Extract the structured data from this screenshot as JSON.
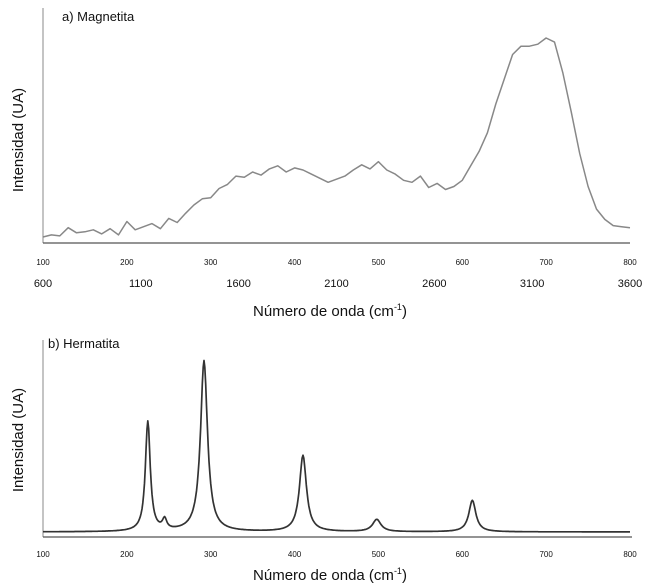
{
  "chart_data": [
    {
      "type": "line",
      "title": "a) Magnetita",
      "xlabel": "Número de onda (cm",
      "xlabel_sup": "-1",
      "xlabel_close": ")",
      "ylabel": "Intensidad (UA)",
      "x_ticks_primary": [
        "100",
        "200",
        "300",
        "400",
        "500",
        "600",
        "700",
        "800"
      ],
      "x_ticks_secondary": [
        "600",
        "1100",
        "1600",
        "2100",
        "2600",
        "3100",
        "3600"
      ],
      "xlim": [
        100,
        800
      ],
      "secondary_xlim": [
        600,
        3600
      ],
      "color": "#888888",
      "x": [
        100,
        110,
        120,
        130,
        140,
        150,
        160,
        170,
        180,
        190,
        200,
        210,
        220,
        230,
        240,
        250,
        260,
        270,
        280,
        290,
        300,
        310,
        320,
        330,
        340,
        350,
        360,
        370,
        380,
        390,
        400,
        410,
        420,
        430,
        440,
        450,
        460,
        470,
        480,
        490,
        500,
        510,
        520,
        530,
        540,
        550,
        560,
        570,
        580,
        590,
        600,
        610,
        620,
        630,
        640,
        650,
        660,
        670,
        680,
        690,
        700,
        710,
        720,
        730,
        740,
        750,
        760,
        770,
        780,
        790,
        800
      ],
      "y": [
        1,
        3,
        2,
        10,
        5,
        6,
        8,
        4,
        9,
        3,
        16,
        8,
        11,
        14,
        9,
        19,
        15,
        24,
        32,
        38,
        39,
        48,
        52,
        60,
        59,
        64,
        61,
        67,
        70,
        64,
        68,
        66,
        62,
        58,
        54,
        57,
        60,
        66,
        71,
        67,
        74,
        66,
        62,
        56,
        54,
        60,
        49,
        53,
        47,
        50,
        56,
        70,
        84,
        102,
        130,
        154,
        178,
        186,
        186,
        188,
        194,
        190,
        160,
        122,
        82,
        50,
        28,
        18,
        12,
        11,
        10
      ]
    },
    {
      "type": "line",
      "title": "b) Hermatita",
      "xlabel": "Número de onda (cm",
      "xlabel_sup": "-1",
      "xlabel_close": ")",
      "ylabel": "Intensidad (UA)",
      "x_ticks": [
        "100",
        "200",
        "300",
        "400",
        "500",
        "600",
        "700",
        "800"
      ],
      "xlim": [
        100,
        800
      ],
      "ylim": [
        0,
        170
      ],
      "color": "#333333",
      "baseline": 3,
      "peaks": [
        {
          "x": 225,
          "height": 108,
          "width": 3.5
        },
        {
          "x": 245,
          "height": 10,
          "width": 3
        },
        {
          "x": 292,
          "height": 168,
          "width": 5
        },
        {
          "x": 410,
          "height": 75,
          "width": 5
        },
        {
          "x": 498,
          "height": 12,
          "width": 6
        },
        {
          "x": 612,
          "height": 31,
          "width": 5
        }
      ]
    }
  ]
}
